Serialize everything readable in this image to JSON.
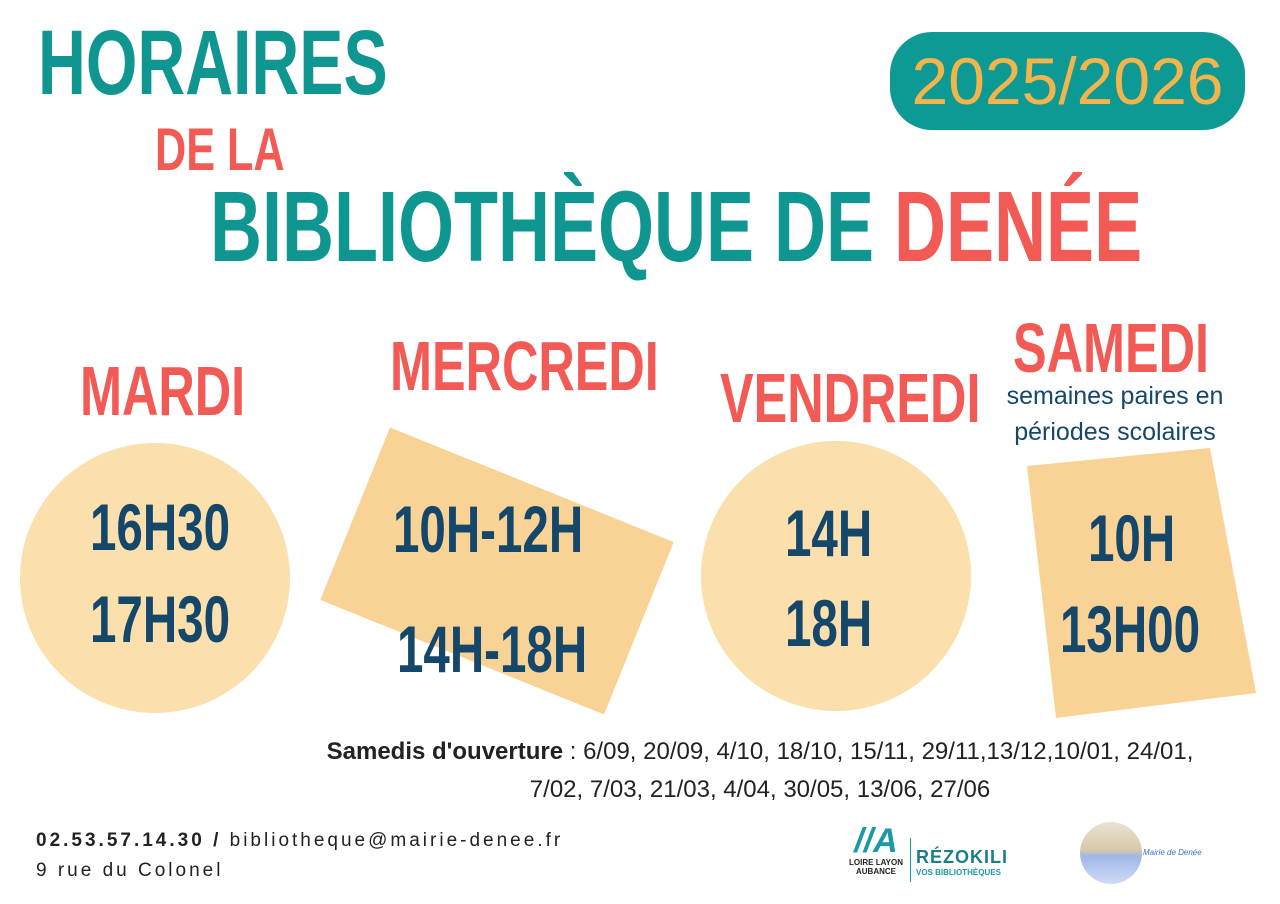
{
  "header": {
    "title_line1": "HORAIRES",
    "title_line2": "DE LA",
    "title_line3_part1": "BIBLIOTHÈQUE DE ",
    "title_line3_part2": "DENÉE",
    "year": "2025/2026"
  },
  "days": [
    {
      "name": "MARDI",
      "times": [
        "16H30",
        "17H30"
      ]
    },
    {
      "name": "MERCREDI",
      "times": [
        "10H-12H",
        "14H-18H"
      ]
    },
    {
      "name": "VENDREDI",
      "times": [
        "14H",
        "18H"
      ]
    },
    {
      "name": "SAMEDI",
      "subtitle_line1": "semaines paires en",
      "subtitle_line2": "périodes scolaires",
      "times": [
        "10H",
        "13H00"
      ]
    }
  ],
  "saturdays": {
    "label": "Samedis d'ouverture",
    "dates_line1": " : 6/09, 20/09, 4/10, 18/10, 15/11, 29/11,13/12,10/01, 24/01,",
    "dates_line2": "7/02, 7/03, 21/03, 4/04, 30/05, 13/06, 27/06"
  },
  "contact": {
    "phone": "02.53.57.14.30",
    "separator": " / ",
    "email": "bibliotheque@mairie-denee.fr",
    "address": "9 rue du Colonel"
  },
  "logos": {
    "loire": "LOIRE LAYON AUBANCE",
    "rezokili": "RÉZOKILI",
    "rezokili_sub": "VOS BIBLIOTHÈQUES",
    "mairie": "Mairie de Denée"
  },
  "colors": {
    "teal": "#109690",
    "coral": "#f25a55",
    "navy": "#15476b",
    "peach": "#fbdfad",
    "orange": "#f9d296",
    "year_text": "#f3b44b"
  }
}
